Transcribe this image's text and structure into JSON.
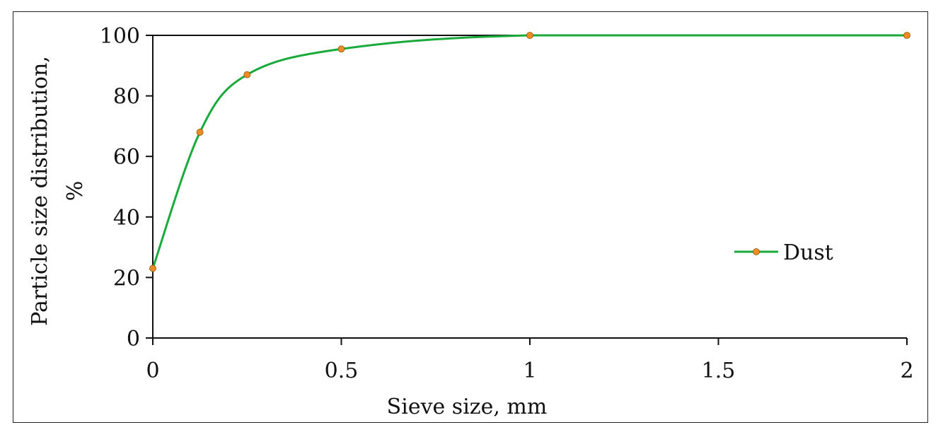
{
  "chart_data": {
    "type": "line",
    "title": "",
    "xlabel": "Sieve size, mm",
    "ylabel_line1": "Particle size distribution,",
    "ylabel_line2": "%",
    "xlim": [
      0,
      2
    ],
    "ylim": [
      0,
      100
    ],
    "xticks": [
      0,
      0.5,
      1,
      1.5,
      2
    ],
    "xtick_labels": [
      "0",
      "0.5",
      "1",
      "1.5",
      "2"
    ],
    "yticks": [
      0,
      20,
      40,
      60,
      80,
      100
    ],
    "ytick_labels": [
      "0",
      "20",
      "40",
      "60",
      "80",
      "100"
    ],
    "grid": false,
    "legend_position": "right",
    "series": [
      {
        "name": "Dust",
        "line_color": "#1aaa3c",
        "marker_color": "#f08a24",
        "x": [
          0,
          0.125,
          0.25,
          0.5,
          1,
          2
        ],
        "y": [
          23,
          68,
          87,
          95.5,
          100,
          100
        ]
      }
    ]
  }
}
